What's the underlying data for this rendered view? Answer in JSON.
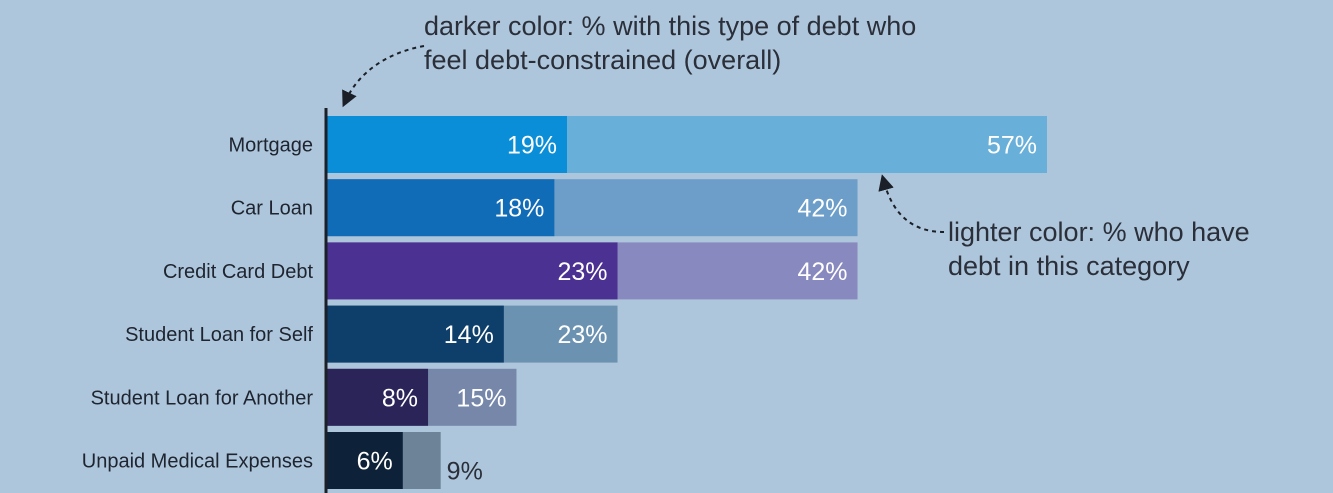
{
  "chart_data": {
    "type": "bar",
    "orientation": "horizontal",
    "stacking": "overlay",
    "categories": [
      "Mortgage",
      "Car Loan",
      "Credit Card Debt",
      "Student Loan for Self",
      "Student Loan for Another",
      "Unpaid Medical Expenses"
    ],
    "series": [
      {
        "role": "darker",
        "values": [
          19,
          18,
          23,
          14,
          8,
          6
        ],
        "labels": [
          "19%",
          "18%",
          "23%",
          "14%",
          "8%",
          "6%"
        ],
        "colors": [
          "#0a8ed8",
          "#116cb8",
          "#4a3192",
          "#0e3e6a",
          "#2b2458",
          "#0d2238"
        ]
      },
      {
        "role": "lighter",
        "values": [
          57,
          42,
          42,
          23,
          15,
          9
        ],
        "labels": [
          "57%",
          "42%",
          "42%",
          "23%",
          "15%",
          "9%"
        ],
        "colors": [
          "#68afd9",
          "#6c9ec9",
          "#8889be",
          "#6c92b2",
          "#7687aa",
          "#6d8397"
        ]
      }
    ],
    "value_unit": "%",
    "xlim": [
      0,
      57
    ],
    "annotations": [
      {
        "id": "dark",
        "text_lines": [
          "darker color: % with this type of debt who",
          "feel debt-constrained (overall)"
        ]
      },
      {
        "id": "light",
        "text_lines": [
          "lighter color: % who have",
          "debt in this category"
        ]
      }
    ],
    "label_colors": {
      "inside": "#ffffff",
      "outside": "#2a2f3a",
      "category": "#1e2430"
    },
    "axis_color": "#1a1f28",
    "background": "#aec6db"
  }
}
